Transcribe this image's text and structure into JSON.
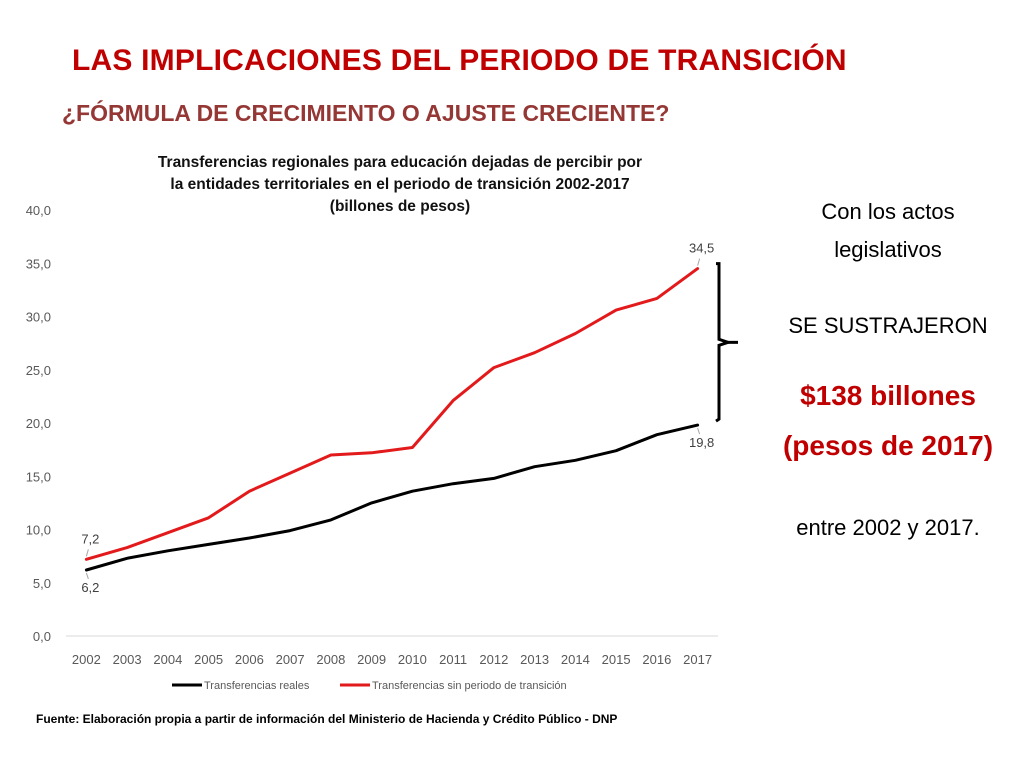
{
  "slide": {
    "title": "LAS IMPLICACIONES DEL PERIODO DE TRANSICIÓN",
    "subtitle": "¿FÓRMULA DE CRECIMIENTO O AJUSTE CRECIENTE?",
    "source": "Fuente: Elaboración propia a partir de información del Ministerio de Hacienda y Crédito Público - DNP"
  },
  "side_panel": {
    "line1": "Con los actos",
    "line2": "legislativos",
    "line3": "SE SUSTRAJERON",
    "amount": "$138 billones",
    "unit": "(pesos de 2017)",
    "period": "entre 2002 y 2017."
  },
  "chart_data": {
    "type": "line",
    "title_lines": [
      "Transferencias regionales para educación dejadas de percibir por",
      "la entidades territoriales en el periodo de transición 2002-2017",
      "(billones de pesos)"
    ],
    "x": [
      "2002",
      "2003",
      "2004",
      "2005",
      "2006",
      "2007",
      "2008",
      "2009",
      "2010",
      "2011",
      "2012",
      "2013",
      "2014",
      "2015",
      "2016",
      "2017"
    ],
    "ylim": [
      0,
      40
    ],
    "yticks": [
      "0,0",
      "5,0",
      "10,0",
      "15,0",
      "20,0",
      "25,0",
      "30,0",
      "35,0",
      "40,0"
    ],
    "grid": false,
    "legend_position": "bottom",
    "series": [
      {
        "name": "Transferencias reales",
        "color": "#000000",
        "values": [
          6.2,
          7.3,
          8.0,
          8.6,
          9.2,
          9.9,
          10.9,
          12.5,
          13.6,
          14.3,
          14.8,
          15.9,
          16.5,
          17.4,
          18.9,
          19.8
        ]
      },
      {
        "name": "Transferencias sin periodo de transición",
        "color": "#e31a1c",
        "values": [
          7.2,
          8.3,
          9.7,
          11.1,
          13.6,
          15.3,
          17.0,
          17.2,
          17.7,
          22.1,
          25.2,
          26.6,
          28.4,
          30.6,
          31.7,
          34.5
        ]
      }
    ],
    "data_labels": [
      {
        "series": 1,
        "index": 0,
        "text": "7,2",
        "placement": "above"
      },
      {
        "series": 0,
        "index": 0,
        "text": "6,2",
        "placement": "below"
      },
      {
        "series": 1,
        "index": 15,
        "text": "34,5",
        "placement": "above"
      },
      {
        "series": 0,
        "index": 15,
        "text": "19,8",
        "placement": "below"
      }
    ],
    "annotation": "bracket-between-final-values"
  }
}
